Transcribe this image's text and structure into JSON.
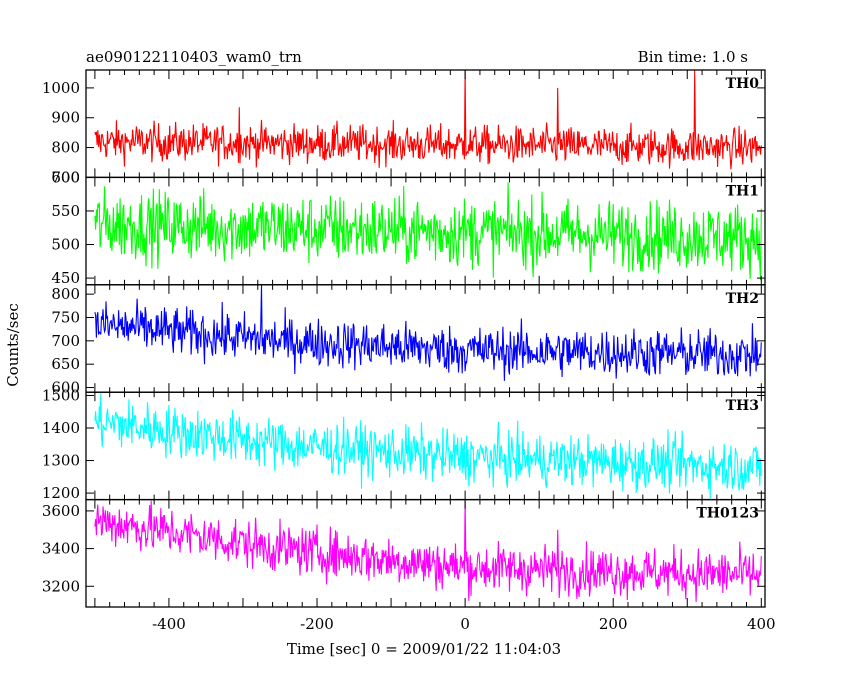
{
  "chart_data": {
    "type": "line",
    "title_left": "ae090122110403_wam0_trn",
    "title_right": "Bin time: 1.0 s",
    "xlabel": "Time [sec] 0 = 2009/01/22 11:04:03",
    "ylabel": "Counts/sec",
    "xlim": [
      -512,
      405
    ],
    "x_ticks": [
      -400,
      -200,
      0,
      200,
      400
    ],
    "panels": [
      {
        "name": "TH0",
        "color": "#ff0000",
        "ylim": [
          700,
          1060
        ],
        "y_ticks": [
          700,
          800,
          900,
          1000
        ],
        "trend": [
          [
            -500,
            820
          ],
          [
            400,
            800
          ]
        ],
        "noise": 32,
        "spikes": [
          [
            0,
            1060
          ],
          [
            125,
            1000
          ],
          [
            310,
            1060
          ],
          [
            -305,
            935
          ]
        ]
      },
      {
        "name": "TH1",
        "color": "#00ff00",
        "ylim": [
          440,
          600
        ],
        "y_ticks": [
          450,
          500,
          550,
          600
        ],
        "trend": [
          [
            -500,
            530
          ],
          [
            400,
            510
          ]
        ],
        "noise": 26,
        "spikes": []
      },
      {
        "name": "TH2",
        "color": "#0000ff",
        "ylim": [
          590,
          820
        ],
        "y_ticks": [
          600,
          650,
          700,
          750,
          800
        ],
        "trend": [
          [
            -500,
            735
          ],
          [
            -250,
            700
          ],
          [
            0,
            680
          ],
          [
            400,
            670
          ]
        ],
        "noise": 26,
        "spikes": [
          [
            -275,
            820
          ]
        ]
      },
      {
        "name": "TH3",
        "color": "#00ffff",
        "ylim": [
          1180,
          1510
        ],
        "y_ticks": [
          1200,
          1300,
          1400,
          1500
        ],
        "trend": [
          [
            -500,
            1420
          ],
          [
            -250,
            1350
          ],
          [
            0,
            1310
          ],
          [
            400,
            1280
          ]
        ],
        "noise": 40,
        "spikes": []
      },
      {
        "name": "TH0123",
        "color": "#ff00ff",
        "ylim": [
          3090,
          3660
        ],
        "y_ticks": [
          3200,
          3400,
          3600
        ],
        "trend": [
          [
            -500,
            3550
          ],
          [
            -250,
            3400
          ],
          [
            0,
            3300
          ],
          [
            400,
            3260
          ]
        ],
        "noise": 65,
        "spikes": [
          [
            0,
            3660
          ],
          [
            125,
            3500
          ]
        ]
      }
    ]
  }
}
